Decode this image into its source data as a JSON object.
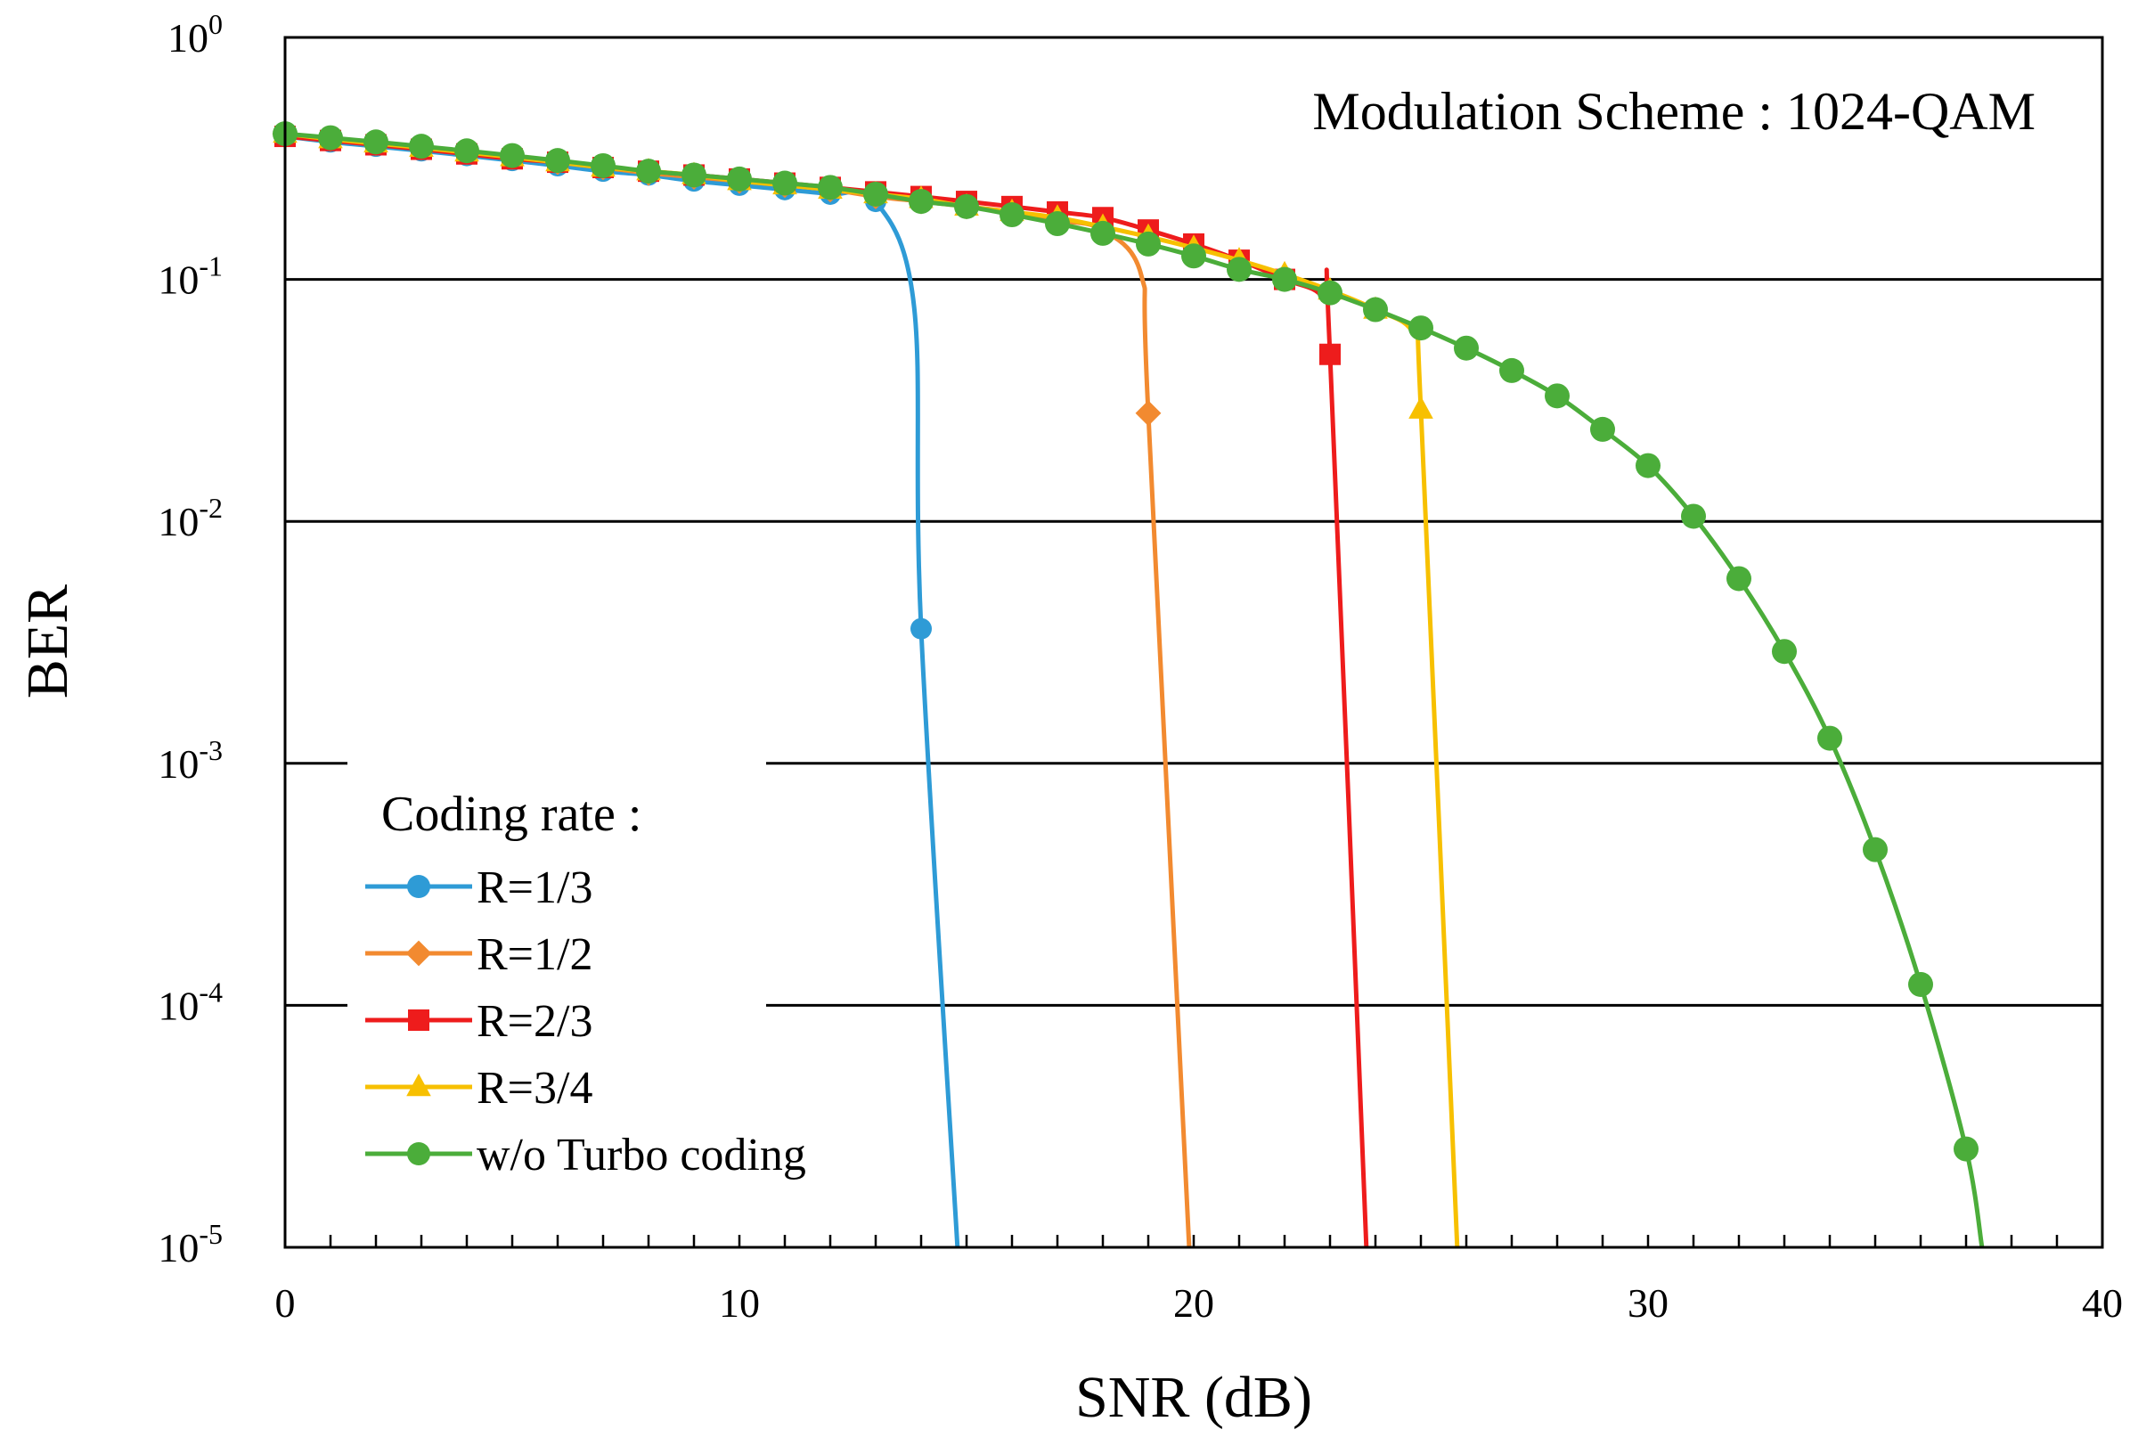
{
  "chart_data": {
    "type": "line",
    "title": "",
    "annotation": "Modulation Scheme : 1024-QAM",
    "xlabel": "SNR (dB)",
    "ylabel": "BER",
    "xlim": [
      0,
      40
    ],
    "ylim": [
      1e-05,
      1
    ],
    "yscale": "log",
    "grid": "horizontal",
    "x_ticks": [
      {
        "value": 0,
        "label": "0"
      },
      {
        "value": 10,
        "label": "10"
      },
      {
        "value": 20,
        "label": "20"
      },
      {
        "value": 30,
        "label": "30"
      },
      {
        "value": 40,
        "label": "40"
      }
    ],
    "y_ticks": [
      {
        "exp": 0,
        "base": "10",
        "sup": "0"
      },
      {
        "exp": -1,
        "base": "10",
        "sup": "-1"
      },
      {
        "exp": -2,
        "base": "10",
        "sup": "-2"
      },
      {
        "exp": -3,
        "base": "10",
        "sup": "-3"
      },
      {
        "exp": -4,
        "base": "10",
        "sup": "-4"
      },
      {
        "exp": -5,
        "base": "10",
        "sup": "-5"
      }
    ],
    "legend": {
      "title": "Coding rate :",
      "position": "bottom-left"
    },
    "series": [
      {
        "name": "R=1/3",
        "color": "#2e9bd6",
        "marker": "circle",
        "x": [
          0,
          1,
          2,
          3,
          4,
          5,
          6,
          7,
          8,
          9,
          10,
          11,
          12,
          13,
          14
        ],
        "y": [
          0.39,
          0.37,
          0.355,
          0.34,
          0.325,
          0.31,
          0.295,
          0.28,
          0.27,
          0.255,
          0.245,
          0.235,
          0.225,
          0.21,
          0.0036
        ],
        "tail": [
          14.8,
          1e-05
        ]
      },
      {
        "name": "R=1/2",
        "color": "#f28a30",
        "marker": "diamond",
        "x": [
          0,
          1,
          2,
          3,
          4,
          5,
          6,
          7,
          8,
          9,
          10,
          11,
          12,
          13,
          14,
          15,
          16,
          17,
          18,
          19
        ],
        "y": [
          0.4,
          0.38,
          0.365,
          0.35,
          0.335,
          0.32,
          0.305,
          0.29,
          0.275,
          0.265,
          0.255,
          0.245,
          0.235,
          0.22,
          0.21,
          0.2,
          0.19,
          0.175,
          0.16,
          0.028
        ],
        "tail": [
          19.9,
          1e-05
        ]
      },
      {
        "name": "R=2/3",
        "color": "#ee1c1c",
        "marker": "square",
        "x": [
          0,
          1,
          2,
          3,
          4,
          5,
          6,
          7,
          8,
          9,
          10,
          11,
          12,
          13,
          14,
          15,
          16,
          17,
          18,
          19,
          20,
          21,
          22,
          23
        ],
        "y": [
          0.39,
          0.375,
          0.36,
          0.345,
          0.33,
          0.315,
          0.305,
          0.29,
          0.28,
          0.27,
          0.26,
          0.25,
          0.24,
          0.23,
          0.22,
          0.21,
          0.2,
          0.19,
          0.18,
          0.16,
          0.14,
          0.12,
          0.1,
          0.049
        ],
        "tail": [
          23.8,
          1e-05
        ]
      },
      {
        "name": "R=3/4",
        "color": "#f7c000",
        "marker": "triangle",
        "x": [
          0,
          1,
          2,
          3,
          4,
          5,
          6,
          7,
          8,
          9,
          10,
          11,
          12,
          13,
          14,
          15,
          16,
          17,
          18,
          19,
          20,
          21,
          22,
          23,
          24,
          25
        ],
        "y": [
          0.4,
          0.38,
          0.365,
          0.35,
          0.335,
          0.32,
          0.305,
          0.29,
          0.28,
          0.27,
          0.255,
          0.245,
          0.235,
          0.225,
          0.215,
          0.2,
          0.19,
          0.18,
          0.165,
          0.15,
          0.135,
          0.12,
          0.105,
          0.09,
          0.075,
          0.029
        ],
        "tail": [
          25.8,
          1e-05
        ]
      },
      {
        "name": "w/o Turbo coding",
        "color": "#4bad3a",
        "marker": "circle",
        "x": [
          0,
          1,
          2,
          3,
          4,
          5,
          6,
          7,
          8,
          9,
          10,
          11,
          12,
          13,
          14,
          15,
          16,
          17,
          18,
          19,
          20,
          21,
          22,
          23,
          24,
          25,
          26,
          27,
          28,
          29,
          30,
          31,
          32,
          33,
          34,
          35,
          36,
          37
        ],
        "y": [
          0.4,
          0.385,
          0.37,
          0.355,
          0.34,
          0.325,
          0.31,
          0.295,
          0.28,
          0.27,
          0.26,
          0.25,
          0.24,
          0.225,
          0.21,
          0.2,
          0.185,
          0.17,
          0.155,
          0.14,
          0.125,
          0.11,
          0.1,
          0.088,
          0.075,
          0.063,
          0.052,
          0.042,
          0.033,
          0.024,
          0.017,
          0.0105,
          0.0058,
          0.0029,
          0.00127,
          0.00044,
          0.000122,
          2.55e-05
        ],
        "tail": [
          37.35,
          1e-05
        ]
      }
    ]
  }
}
